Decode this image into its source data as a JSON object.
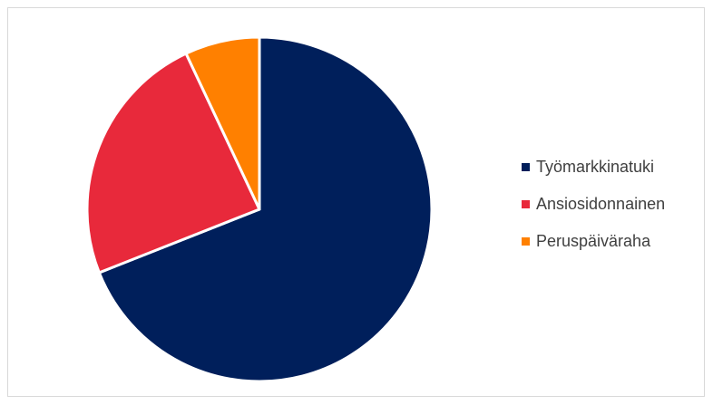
{
  "chart_data": {
    "type": "pie",
    "categories": [
      "Työmarkkinatuki",
      "Ansiosidonnainen",
      "Peruspäiväraha"
    ],
    "values": [
      69,
      24,
      7
    ],
    "colors": [
      "#001f5b",
      "#e8293b",
      "#ff8000"
    ],
    "start_angle_deg": 0,
    "direction": "clockwise",
    "legend_position": "right",
    "title": ""
  },
  "legend": {
    "items": [
      {
        "label": "Työmarkkinatuki",
        "color": "#001f5b"
      },
      {
        "label": "Ansiosidonnainen",
        "color": "#e8293b"
      },
      {
        "label": "Peruspäiväraha",
        "color": "#ff8000"
      }
    ]
  }
}
